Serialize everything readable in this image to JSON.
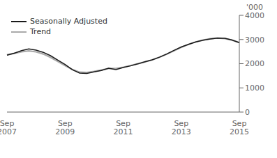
{
  "chart_data": {
    "type": "line",
    "ylabel": "'000",
    "categories": [
      "Sep\n2007",
      null,
      null,
      null,
      null,
      null,
      null,
      null,
      "Sep\n2009",
      null,
      null,
      null,
      null,
      null,
      null,
      null,
      "Sep\n2011",
      null,
      null,
      null,
      null,
      null,
      null,
      null,
      "Sep\n2013",
      null,
      null,
      null,
      null,
      null,
      null,
      null,
      "Sep\n2015"
    ],
    "series": [
      {
        "name": "Seasonally Adjusted",
        "color": "#1a1a1a",
        "values": [
          2350,
          2430,
          2540,
          2610,
          2560,
          2470,
          2330,
          2150,
          1970,
          1750,
          1610,
          1600,
          1660,
          1720,
          1810,
          1755,
          1840,
          1910,
          1990,
          2080,
          2160,
          2270,
          2400,
          2550,
          2690,
          2800,
          2900,
          2970,
          3020,
          3060,
          3050,
          2980,
          2870
        ]
      },
      {
        "name": "Trend",
        "color": "#aaaaaa",
        "values": [
          2370,
          2430,
          2490,
          2530,
          2490,
          2400,
          2260,
          2090,
          1920,
          1760,
          1650,
          1640,
          1680,
          1740,
          1800,
          1800,
          1855,
          1920,
          1995,
          2075,
          2160,
          2265,
          2395,
          2535,
          2675,
          2800,
          2900,
          2975,
          3030,
          3060,
          3040,
          2975,
          2870
        ]
      }
    ],
    "ylim": [
      0,
      4000
    ],
    "yticks": [
      0,
      1000,
      2000,
      3000,
      4000
    ],
    "grid": false,
    "legend": "upper left"
  }
}
